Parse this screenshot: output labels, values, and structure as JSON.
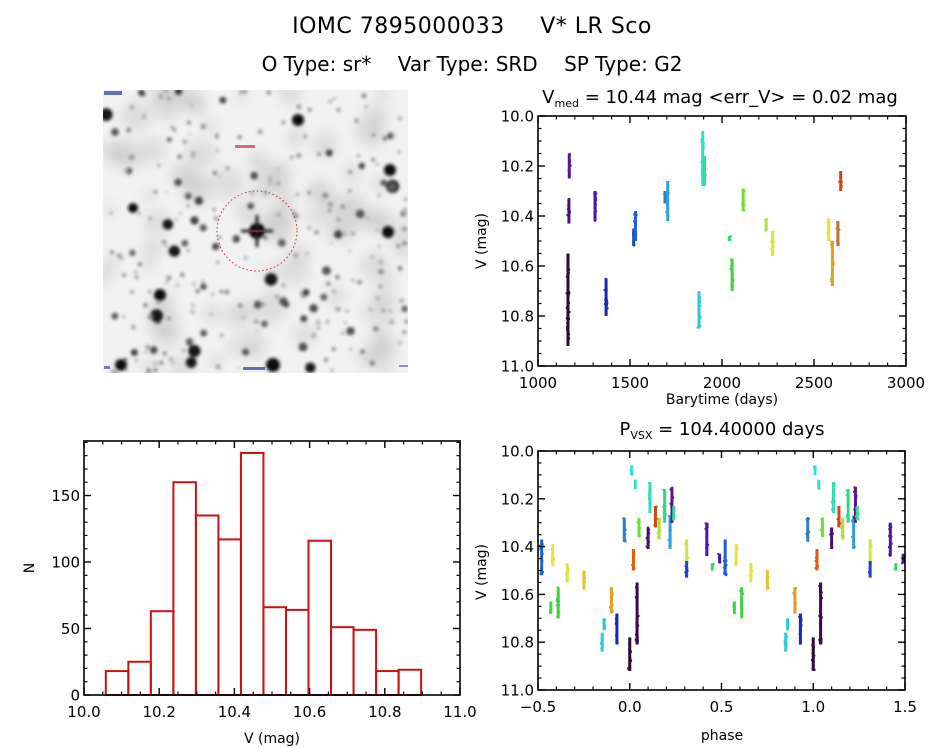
{
  "header": {
    "object_id": "IOMC 7895000033",
    "object_name": "V* LR Sco",
    "o_type": "O Type: sr*",
    "var_type": "Var Type: SRD",
    "sp_type": "SP Type: G2"
  },
  "finder": {
    "description": "grayscale finder chart star field",
    "circle_color": "#cc2222"
  },
  "chart_data": [
    {
      "id": "lightcurve",
      "type": "scatter",
      "title_main": "V",
      "title_sub": "med",
      "title_rest": " = 10.44 mag <err_V> = 0.02 mag",
      "xlabel": "Barytime (days)",
      "ylabel": "V (mag)",
      "xlim": [
        1000,
        3000
      ],
      "ylim": [
        10.0,
        11.0
      ],
      "y_inverted": true,
      "xticks": [
        "1000",
        "1500",
        "2000",
        "2500",
        "3000"
      ],
      "yticks": [
        "10.0",
        "10.2",
        "10.4",
        "10.6",
        "10.8",
        "11.0"
      ],
      "segments": [
        {
          "x": 1163,
          "ymin": 10.55,
          "ymax": 10.92,
          "color": "#2a0a3a"
        },
        {
          "x": 1168,
          "ymin": 10.33,
          "ymax": 10.43,
          "color": "#4a1070"
        },
        {
          "x": 1170,
          "ymin": 10.15,
          "ymax": 10.25,
          "color": "#5a1890"
        },
        {
          "x": 1310,
          "ymin": 10.3,
          "ymax": 10.42,
          "color": "#4a18a8"
        },
        {
          "x": 1370,
          "ymin": 10.65,
          "ymax": 10.8,
          "color": "#1a28b0"
        },
        {
          "x": 1520,
          "ymin": 10.45,
          "ymax": 10.52,
          "color": "#1a48c8"
        },
        {
          "x": 1530,
          "ymin": 10.38,
          "ymax": 10.5,
          "color": "#2060d0"
        },
        {
          "x": 1690,
          "ymin": 10.3,
          "ymax": 10.35,
          "color": "#2a80c0"
        },
        {
          "x": 1705,
          "ymin": 10.26,
          "ymax": 10.42,
          "color": "#30a0d8"
        },
        {
          "x": 1875,
          "ymin": 10.7,
          "ymax": 10.85,
          "color": "#30c8d8"
        },
        {
          "x": 1895,
          "ymin": 10.06,
          "ymax": 10.28,
          "color": "#30e0c8"
        },
        {
          "x": 1905,
          "ymin": 10.16,
          "ymax": 10.28,
          "color": "#30e090"
        },
        {
          "x": 2040,
          "ymin": 10.48,
          "ymax": 10.5,
          "color": "#30d868"
        },
        {
          "x": 2055,
          "ymin": 10.57,
          "ymax": 10.7,
          "color": "#40d040"
        },
        {
          "x": 2115,
          "ymin": 10.29,
          "ymax": 10.38,
          "color": "#70e030"
        },
        {
          "x": 2240,
          "ymin": 10.41,
          "ymax": 10.46,
          "color": "#b0e040"
        },
        {
          "x": 2275,
          "ymin": 10.46,
          "ymax": 10.56,
          "color": "#d8e840"
        },
        {
          "x": 2580,
          "ymin": 10.41,
          "ymax": 10.5,
          "color": "#f0e030"
        },
        {
          "x": 2600,
          "ymin": 10.5,
          "ymax": 10.68,
          "color": "#e0a020"
        },
        {
          "x": 2630,
          "ymin": 10.42,
          "ymax": 10.52,
          "color": "#c07040"
        },
        {
          "x": 2645,
          "ymin": 10.22,
          "ymax": 10.3,
          "color": "#d04a10"
        }
      ]
    },
    {
      "id": "histogram",
      "type": "bar",
      "title": "",
      "xlabel": "V (mag)",
      "ylabel": "N",
      "xlim": [
        10.0,
        11.0
      ],
      "ylim": [
        0,
        191
      ],
      "xticks": [
        "10.0",
        "10.2",
        "10.4",
        "10.6",
        "10.8",
        "11.0"
      ],
      "yticks": [
        "0",
        "50",
        "100",
        "150"
      ],
      "bin_start": 10.058,
      "bin_width": 0.0599,
      "values": [
        18,
        25,
        63,
        160,
        135,
        117,
        182,
        66,
        64,
        116,
        51,
        49,
        18,
        19
      ],
      "bar_color": "#cc1111"
    },
    {
      "id": "phased",
      "type": "scatter",
      "title_main": "P",
      "title_sub": "VSX",
      "title_rest": " = 104.40000 days",
      "xlabel": "phase",
      "ylabel": "V (mag)",
      "xlim": [
        -0.5,
        1.5
      ],
      "ylim": [
        10.0,
        11.0
      ],
      "y_inverted": true,
      "xticks": [
        "−0.5",
        "0.0",
        "0.5",
        "1.0",
        "1.5"
      ],
      "yticks": [
        "10.0",
        "10.2",
        "10.4",
        "10.6",
        "10.8",
        "11.0"
      ],
      "period_days": 104.4,
      "segments": [
        {
          "x": -0.48,
          "ymin": 10.37,
          "ymax": 10.52,
          "color": "#2060d0"
        },
        {
          "x": -0.43,
          "ymin": 10.63,
          "ymax": 10.68,
          "color": "#40d040"
        },
        {
          "x": -0.42,
          "ymin": 10.39,
          "ymax": 10.48,
          "color": "#f0e030"
        },
        {
          "x": -0.39,
          "ymin": 10.57,
          "ymax": 10.7,
          "color": "#40d040"
        },
        {
          "x": -0.34,
          "ymin": 10.47,
          "ymax": 10.55,
          "color": "#d8e840"
        },
        {
          "x": -0.25,
          "ymin": 10.5,
          "ymax": 10.58,
          "color": "#e8c030"
        },
        {
          "x": -0.15,
          "ymin": 10.76,
          "ymax": 10.84,
          "color": "#30c8d8"
        },
        {
          "x": -0.14,
          "ymin": 10.7,
          "ymax": 10.75,
          "color": "#30c8d8"
        },
        {
          "x": -0.1,
          "ymin": 10.57,
          "ymax": 10.68,
          "color": "#e0a020"
        },
        {
          "x": -0.07,
          "ymin": 10.68,
          "ymax": 10.81,
          "color": "#1a28b0"
        },
        {
          "x": -0.03,
          "ymin": 10.28,
          "ymax": 10.38,
          "color": "#2a80c0"
        },
        {
          "x": 0.0,
          "ymin": 10.78,
          "ymax": 10.92,
          "color": "#2a0a3a"
        },
        {
          "x": 0.01,
          "ymin": 10.06,
          "ymax": 10.1,
          "color": "#30e0d8"
        },
        {
          "x": 0.02,
          "ymin": 10.41,
          "ymax": 10.5,
          "color": "#e06010"
        },
        {
          "x": 0.03,
          "ymin": 10.12,
          "ymax": 10.16,
          "color": "#30e0c8"
        },
        {
          "x": 0.04,
          "ymin": 10.55,
          "ymax": 10.81,
          "color": "#3a0a50"
        },
        {
          "x": 0.05,
          "ymin": 10.28,
          "ymax": 10.36,
          "color": "#70e030"
        },
        {
          "x": 0.1,
          "ymin": 10.32,
          "ymax": 10.41,
          "color": "#4a1070"
        },
        {
          "x": 0.11,
          "ymin": 10.13,
          "ymax": 10.26,
          "color": "#30e0b0"
        },
        {
          "x": 0.14,
          "ymin": 10.23,
          "ymax": 10.32,
          "color": "#d04a10"
        },
        {
          "x": 0.16,
          "ymin": 10.28,
          "ymax": 10.37,
          "color": "#b0e040"
        },
        {
          "x": 0.19,
          "ymin": 10.16,
          "ymax": 10.3,
          "color": "#30d880"
        },
        {
          "x": 0.22,
          "ymin": 10.27,
          "ymax": 10.41,
          "color": "#30a0d8"
        },
        {
          "x": 0.23,
          "ymin": 10.15,
          "ymax": 10.3,
          "color": "#5a1890"
        },
        {
          "x": 0.24,
          "ymin": 10.23,
          "ymax": 10.29,
          "color": "#30e090"
        },
        {
          "x": 0.31,
          "ymin": 10.37,
          "ymax": 10.47,
          "color": "#c8e840"
        },
        {
          "x": 0.31,
          "ymin": 10.46,
          "ymax": 10.53,
          "color": "#1a48c8"
        },
        {
          "x": 0.42,
          "ymin": 10.3,
          "ymax": 10.44,
          "color": "#4a18a8"
        },
        {
          "x": 0.45,
          "ymin": 10.47,
          "ymax": 10.5,
          "color": "#30d868"
        },
        {
          "x": 0.49,
          "ymin": 10.43,
          "ymax": 10.47,
          "color": "#3a18a0"
        }
      ]
    }
  ]
}
